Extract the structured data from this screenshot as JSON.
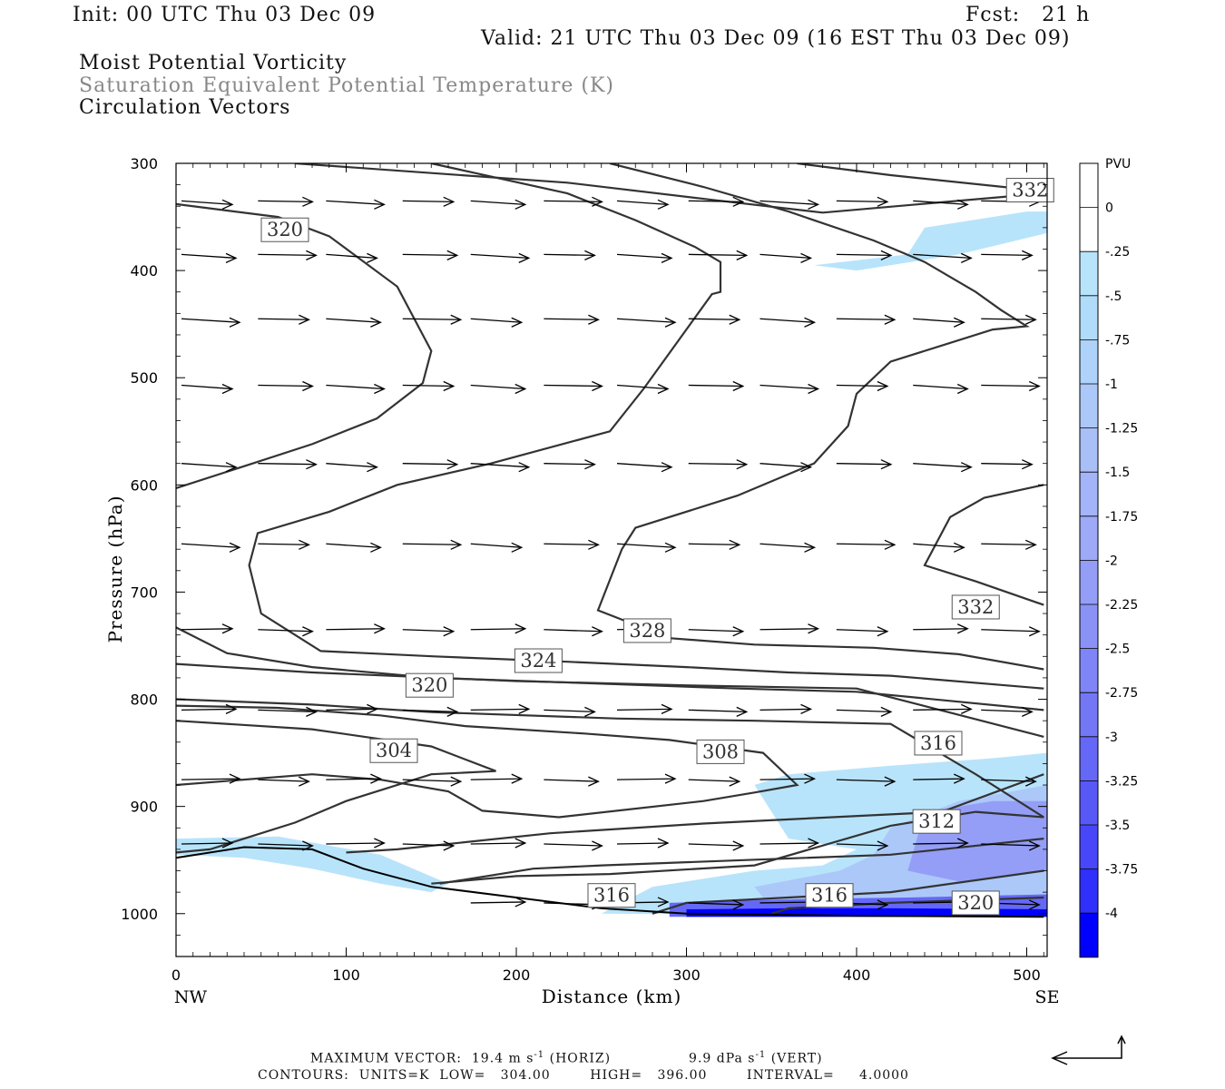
{
  "header": {
    "init": "Init: 00 UTC Thu 03 Dec 09",
    "fcst": "Fcst:   21 h",
    "valid": "Valid: 21 UTC Thu 03 Dec 09 (16 EST Thu 03 Dec 09)",
    "field1": "Moist Potential Vorticity",
    "field2": "Saturation Equivalent Potential Temperature (K)",
    "field3": "Circulation Vectors"
  },
  "footer": {
    "vector_line_left": "MAXIMUM VECTOR:  19.4 m s",
    "vector_line_mid": "(HORIZ)",
    "vector_line_right": "9.9 dPa s",
    "vector_line_end": "(VERT)",
    "exponent": "-1",
    "contours_line": "CONTOURS:  UNITS=K  LOW=   304.00        HIGH=   396.00        INTERVAL=     4.0000"
  },
  "colors": {
    "contour": "#333333",
    "shade_light": "#b8e4fb",
    "shade_mid": "#a9b8f8",
    "shade_dark": "#5a5af5",
    "shade_deep": "#0000ff"
  },
  "chart_data": {
    "type": "contour-cross-section",
    "xlabel": "Distance (km)",
    "ylabel": "Pressure (hPa)",
    "x_ticks": [
      0,
      100,
      200,
      300,
      400,
      500
    ],
    "xlim": [
      0,
      512
    ],
    "y_ticks": [
      300,
      400,
      500,
      600,
      700,
      800,
      900,
      1000
    ],
    "ylim": [
      1040,
      300
    ],
    "x_end_labels": {
      "left": "NW",
      "right": "SE"
    },
    "colorbar": {
      "unit": "PVU",
      "levels": [
        "0",
        "-.25",
        "-.5",
        "-.75",
        "-1",
        "-1.25",
        "-1.5",
        "-1.75",
        "-2",
        "-2.25",
        "-2.5",
        "-2.75",
        "-3",
        "-3.25",
        "-3.5",
        "-3.75",
        "-4"
      ],
      "colors": [
        "#ffffff",
        "#ffffff",
        "#b8e4fb",
        "#b0dcfa",
        "#aed2fa",
        "#acc8f9",
        "#a8bff8",
        "#a4b4f8",
        "#9ea9f7",
        "#949ef7",
        "#8a92f6",
        "#7f85f6",
        "#7377f6",
        "#6568f6",
        "#5858f7",
        "#4747f9",
        "#3030fb",
        "#0000ff"
      ]
    },
    "contour_labels": [
      {
        "text": "332",
        "x": 502,
        "p": 325
      },
      {
        "text": "320",
        "x": 64,
        "p": 362
      },
      {
        "text": "332",
        "x": 470,
        "p": 714
      },
      {
        "text": "328",
        "x": 277,
        "p": 736
      },
      {
        "text": "324",
        "x": 213,
        "p": 764
      },
      {
        "text": "320",
        "x": 149,
        "p": 787
      },
      {
        "text": "316",
        "x": 448,
        "p": 841
      },
      {
        "text": "304",
        "x": 128,
        "p": 848
      },
      {
        "text": "308",
        "x": 320,
        "p": 849
      },
      {
        "text": "312",
        "x": 447,
        "p": 914
      },
      {
        "text": "316",
        "x": 256,
        "p": 983
      },
      {
        "text": "316",
        "x": 384,
        "p": 983
      },
      {
        "text": "320",
        "x": 470,
        "p": 990
      }
    ],
    "contours": [
      [
        [
          70,
          300
        ],
        [
          230,
          318
        ],
        [
          315,
          334
        ],
        [
          380,
          346
        ],
        [
          510,
          328
        ]
      ],
      [
        [
          365,
          300
        ],
        [
          420,
          311
        ],
        [
          510,
          326
        ]
      ],
      [
        [
          0,
          338
        ],
        [
          60,
          350
        ],
        [
          90,
          368
        ],
        [
          130,
          415
        ],
        [
          150,
          475
        ],
        [
          145,
          505
        ],
        [
          118,
          538
        ],
        [
          80,
          562
        ],
        [
          45,
          580
        ],
        [
          0,
          603
        ]
      ],
      [
        [
          150,
          300
        ],
        [
          230,
          328
        ],
        [
          270,
          353
        ],
        [
          305,
          378
        ],
        [
          320,
          392
        ],
        [
          320,
          420
        ],
        [
          315,
          422
        ],
        [
          275,
          510
        ],
        [
          255,
          550
        ],
        [
          185,
          580
        ],
        [
          130,
          600
        ],
        [
          90,
          625
        ],
        [
          48,
          645
        ],
        [
          43,
          675
        ],
        [
          50,
          720
        ],
        [
          85,
          755
        ],
        [
          152,
          760
        ],
        [
          230,
          765
        ],
        [
          300,
          770
        ],
        [
          360,
          775
        ],
        [
          420,
          778
        ],
        [
          510,
          790
        ]
      ],
      [
        [
          255,
          300
        ],
        [
          310,
          322
        ],
        [
          360,
          345
        ],
        [
          410,
          372
        ],
        [
          440,
          392
        ],
        [
          470,
          420
        ],
        [
          485,
          437
        ],
        [
          500,
          452
        ],
        [
          480,
          455
        ],
        [
          420,
          485
        ],
        [
          400,
          515
        ],
        [
          395,
          545
        ],
        [
          375,
          580
        ],
        [
          330,
          610
        ],
        [
          270,
          640
        ],
        [
          262,
          660
        ],
        [
          248,
          717
        ],
        [
          290,
          743
        ],
        [
          340,
          749
        ],
        [
          410,
          752
        ],
        [
          460,
          758
        ],
        [
          510,
          772
        ]
      ],
      [
        [
          510,
          600
        ],
        [
          475,
          612
        ],
        [
          455,
          630
        ],
        [
          440,
          675
        ],
        [
          470,
          690
        ],
        [
          510,
          712
        ]
      ],
      [
        [
          0,
          733
        ],
        [
          30,
          757
        ],
        [
          80,
          770
        ],
        [
          150,
          780
        ],
        [
          260,
          786
        ],
        [
          330,
          790
        ],
        [
          400,
          793
        ],
        [
          510,
          810
        ]
      ],
      [
        [
          0,
          767
        ],
        [
          80,
          775
        ],
        [
          200,
          783
        ],
        [
          300,
          787
        ],
        [
          400,
          790
        ],
        [
          510,
          835
        ]
      ],
      [
        [
          0,
          800
        ],
        [
          80,
          805
        ],
        [
          150,
          812
        ],
        [
          260,
          818
        ],
        [
          340,
          820
        ],
        [
          420,
          823
        ],
        [
          470,
          870
        ],
        [
          510,
          910
        ],
        [
          470,
          905
        ],
        [
          420,
          918
        ],
        [
          340,
          955
        ],
        [
          255,
          963
        ],
        [
          200,
          965
        ],
        [
          150,
          972
        ]
      ],
      [
        [
          0,
          820
        ],
        [
          80,
          828
        ],
        [
          150,
          844
        ],
        [
          188,
          867
        ],
        [
          150,
          870
        ],
        [
          100,
          895
        ],
        [
          70,
          915
        ],
        [
          20,
          940
        ],
        [
          0,
          943
        ]
      ],
      [
        [
          0,
          880
        ],
        [
          80,
          870
        ],
        [
          120,
          875
        ],
        [
          160,
          886
        ],
        [
          180,
          904
        ],
        [
          225,
          910
        ],
        [
          310,
          895
        ],
        [
          340,
          887
        ],
        [
          365,
          880
        ],
        [
          345,
          850
        ],
        [
          290,
          838
        ],
        [
          240,
          832
        ],
        [
          170,
          825
        ],
        [
          120,
          815
        ],
        [
          60,
          808
        ],
        [
          0,
          806
        ]
      ],
      [
        [
          100,
          943
        ],
        [
          130,
          940
        ],
        [
          220,
          925
        ],
        [
          310,
          916
        ],
        [
          450,
          905
        ],
        [
          510,
          870
        ]
      ],
      [
        [
          155,
          972
        ],
        [
          210,
          958
        ],
        [
          250,
          955
        ],
        [
          420,
          945
        ],
        [
          510,
          930
        ]
      ],
      [
        [
          280,
          1000
        ],
        [
          300,
          990
        ],
        [
          420,
          980
        ],
        [
          510,
          960
        ]
      ],
      [
        [
          350,
          1000
        ],
        [
          360,
          995
        ],
        [
          420,
          990
        ],
        [
          510,
          985
        ]
      ]
    ],
    "terrain": [
      [
        0,
        948
      ],
      [
        40,
        938
      ],
      [
        80,
        940
      ],
      [
        110,
        958
      ],
      [
        150,
        975
      ],
      [
        200,
        985
      ],
      [
        250,
        995
      ],
      [
        300,
        1000
      ],
      [
        400,
        1002
      ],
      [
        510,
        1003
      ]
    ],
    "shading": [
      {
        "level": -0.25,
        "poly": [
          [
            0,
            930
          ],
          [
            60,
            928
          ],
          [
            120,
            945
          ],
          [
            160,
            972
          ],
          [
            150,
            980
          ],
          [
            120,
            972
          ],
          [
            80,
            958
          ],
          [
            40,
            948
          ],
          [
            0,
            945
          ]
        ]
      },
      {
        "level": -0.25,
        "poly": [
          [
            375,
            395
          ],
          [
            430,
            385
          ],
          [
            440,
            360
          ],
          [
            500,
            345
          ],
          [
            512,
            345
          ],
          [
            512,
            365
          ],
          [
            460,
            385
          ],
          [
            420,
            395
          ],
          [
            400,
            400
          ]
        ]
      },
      {
        "level": -0.25,
        "poly": [
          [
            340,
            880
          ],
          [
            360,
            870
          ],
          [
            420,
            862
          ],
          [
            480,
            855
          ],
          [
            512,
            850
          ],
          [
            512,
            1003
          ],
          [
            250,
            1000
          ],
          [
            280,
            975
          ],
          [
            340,
            960
          ],
          [
            380,
            955
          ],
          [
            400,
            940
          ],
          [
            360,
            930
          ]
        ]
      },
      {
        "level": -1.0,
        "poly": [
          [
            420,
            920
          ],
          [
            460,
            895
          ],
          [
            512,
            880
          ],
          [
            512,
            990
          ],
          [
            400,
            995
          ],
          [
            350,
            995
          ],
          [
            340,
            975
          ],
          [
            390,
            960
          ],
          [
            410,
            945
          ]
        ]
      },
      {
        "level": -2.0,
        "poly": [
          [
            440,
            905
          ],
          [
            480,
            895
          ],
          [
            512,
            895
          ],
          [
            512,
            960
          ],
          [
            460,
            970
          ],
          [
            430,
            960
          ]
        ]
      },
      {
        "level": -3.0,
        "poly": [
          [
            290,
            990
          ],
          [
            330,
            988
          ],
          [
            380,
            986
          ],
          [
            430,
            985
          ],
          [
            512,
            982
          ],
          [
            512,
            1003
          ],
          [
            290,
            1003
          ]
        ]
      },
      {
        "level": -4.0,
        "poly": [
          [
            300,
            996
          ],
          [
            360,
            995
          ],
          [
            420,
            995
          ],
          [
            512,
            996
          ],
          [
            512,
            1003
          ],
          [
            300,
            1003
          ]
        ]
      }
    ],
    "vectors_note": "circulation vectors drawn as generic eastward arrows across the section",
    "vector_rows": [
      {
        "p": 335,
        "xs": [
          0,
          45,
          85,
          130,
          170,
          213,
          256,
          298,
          340,
          385,
          430,
          470
        ]
      },
      {
        "p": 385,
        "xs": [
          0,
          45,
          85,
          130,
          170,
          213,
          256,
          298,
          340,
          385,
          430,
          470
        ]
      },
      {
        "p": 445,
        "xs": [
          0,
          45,
          85,
          130,
          170,
          213,
          256,
          298,
          340,
          385,
          430,
          470
        ]
      },
      {
        "p": 507,
        "xs": [
          0,
          45,
          85,
          130,
          170,
          213,
          256,
          298,
          340,
          385,
          430,
          470
        ]
      },
      {
        "p": 580,
        "xs": [
          0,
          45,
          85,
          130,
          170,
          213,
          256,
          298,
          340,
          385,
          430,
          470
        ]
      },
      {
        "p": 655,
        "xs": [
          0,
          45,
          85,
          130,
          170,
          213,
          256,
          298,
          340,
          385,
          430,
          470
        ]
      },
      {
        "p": 735,
        "xs": [
          0,
          45,
          85,
          130,
          170,
          213,
          256,
          298,
          340,
          385,
          430,
          470
        ]
      },
      {
        "p": 810,
        "xs": [
          0,
          45,
          85,
          130,
          170,
          213,
          256,
          298,
          340,
          385,
          430,
          470
        ]
      },
      {
        "p": 875,
        "xs": [
          0,
          45,
          85,
          130,
          170,
          213,
          256,
          298,
          340,
          385,
          430,
          470
        ]
      },
      {
        "p": 935,
        "xs": [
          0,
          45,
          85,
          130,
          170,
          213,
          256,
          298,
          340,
          385,
          430,
          470
        ]
      },
      {
        "p": 990,
        "xs": [
          170,
          213,
          256,
          298,
          340,
          385,
          430,
          470
        ]
      }
    ]
  }
}
